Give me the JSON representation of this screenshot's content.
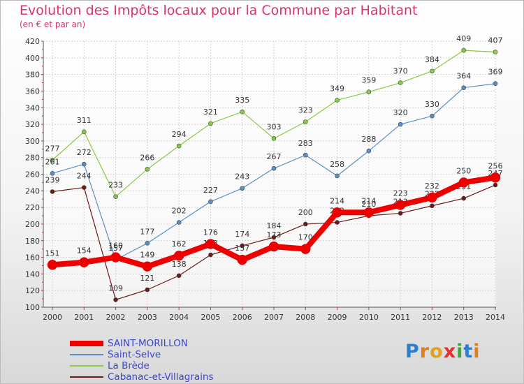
{
  "chart_data": {
    "type": "line",
    "title": "Evolution des Impôts locaux pour la Commune par Habitant",
    "subtitle": "(en € et par an)",
    "xlabel": "",
    "ylabel": "",
    "x": [
      "2000",
      "2001",
      "2002",
      "2003",
      "2004",
      "2005",
      "2006",
      "2007",
      "2008",
      "2009",
      "2010",
      "2011",
      "2012",
      "2013",
      "2014"
    ],
    "ylim": [
      100,
      420
    ],
    "yticks": [
      100,
      120,
      140,
      160,
      180,
      200,
      220,
      240,
      260,
      280,
      300,
      320,
      340,
      360,
      380,
      400,
      420
    ],
    "grid": true,
    "legend_position": "bottom-left",
    "series": [
      {
        "name": "SAINT-MORILLON",
        "color": "#ee0000",
        "values": [
          151,
          154,
          160,
          149,
          162,
          176,
          157,
          173,
          170,
          214,
          214,
          223,
          232,
          250,
          256
        ]
      },
      {
        "name": "Saint-Selve",
        "color": "#5b8fc4",
        "values": [
          261,
          272,
          157,
          177,
          202,
          227,
          243,
          267,
          283,
          258,
          288,
          320,
          330,
          364,
          369
        ]
      },
      {
        "name": "La Brède",
        "color": "#88cc44",
        "values": [
          277,
          311,
          233,
          266,
          294,
          321,
          335,
          303,
          323,
          349,
          359,
          370,
          384,
          409,
          407
        ]
      },
      {
        "name": "Cabanac-et-Villagrains",
        "color": "#6b1a1a",
        "values": [
          239,
          244,
          109,
          121,
          138,
          163,
          174,
          184,
          200,
          202,
          210,
          213,
          222,
          231,
          247
        ]
      }
    ]
  },
  "logo": {
    "letters": [
      "P",
      "r",
      "o",
      "x",
      "i",
      "t",
      "i"
    ],
    "colors": [
      "#2a7fd1",
      "#e07f1a",
      "#e0a020",
      "#e03030",
      "#3aa83a",
      "#2a7fd1",
      "#e07f1a"
    ]
  }
}
